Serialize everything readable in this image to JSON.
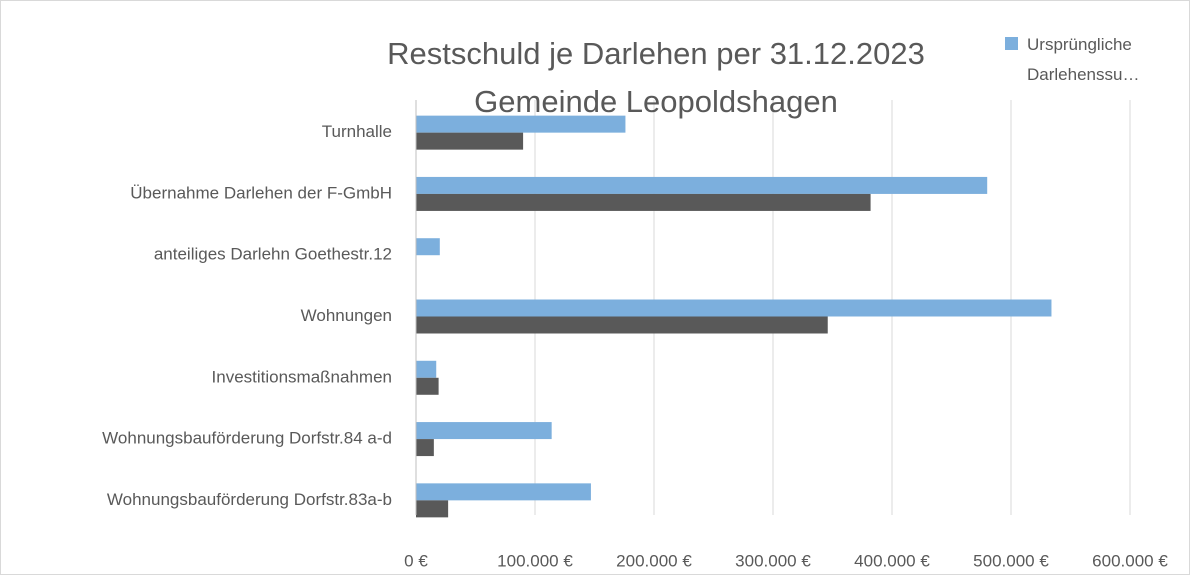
{
  "chart_data": {
    "type": "hbar",
    "title": "Restschuld je Darlehen per 31.12.2023 Gemeinde Leopoldshagen",
    "categories": [
      "Turnhalle",
      "Übernahme Darlehen der F-GmbH",
      "anteiliges Darlehn Goethestr.12",
      "Wohnungen",
      "Investitionsmaßnahmen",
      "Wohnungsbauförderung Dorfstr.84 a-d",
      "Wohnungsbauförderung Dorfstr.83a-b"
    ],
    "series": [
      {
        "name": "Ursprüngliche Darlehenssu…",
        "color": "#7cafdd",
        "values": [
          176000,
          480000,
          20000,
          534000,
          17000,
          114000,
          147000
        ]
      },
      {
        "color": "#595959",
        "values": [
          90000,
          382000,
          0,
          346000,
          19000,
          15000,
          27000
        ]
      }
    ],
    "xlim": [
      0,
      600000
    ],
    "xticks": [
      {
        "value": 0,
        "label": "0 €"
      },
      {
        "value": 100000,
        "label": "100.000 €"
      },
      {
        "value": 200000,
        "label": "200.000 €"
      },
      {
        "value": 300000,
        "label": "300.000 €"
      },
      {
        "value": 400000,
        "label": "400.000 €"
      },
      {
        "value": 500000,
        "label": "500.000 €"
      },
      {
        "value": 600000,
        "label": "600.000 €"
      }
    ],
    "grid": true
  }
}
